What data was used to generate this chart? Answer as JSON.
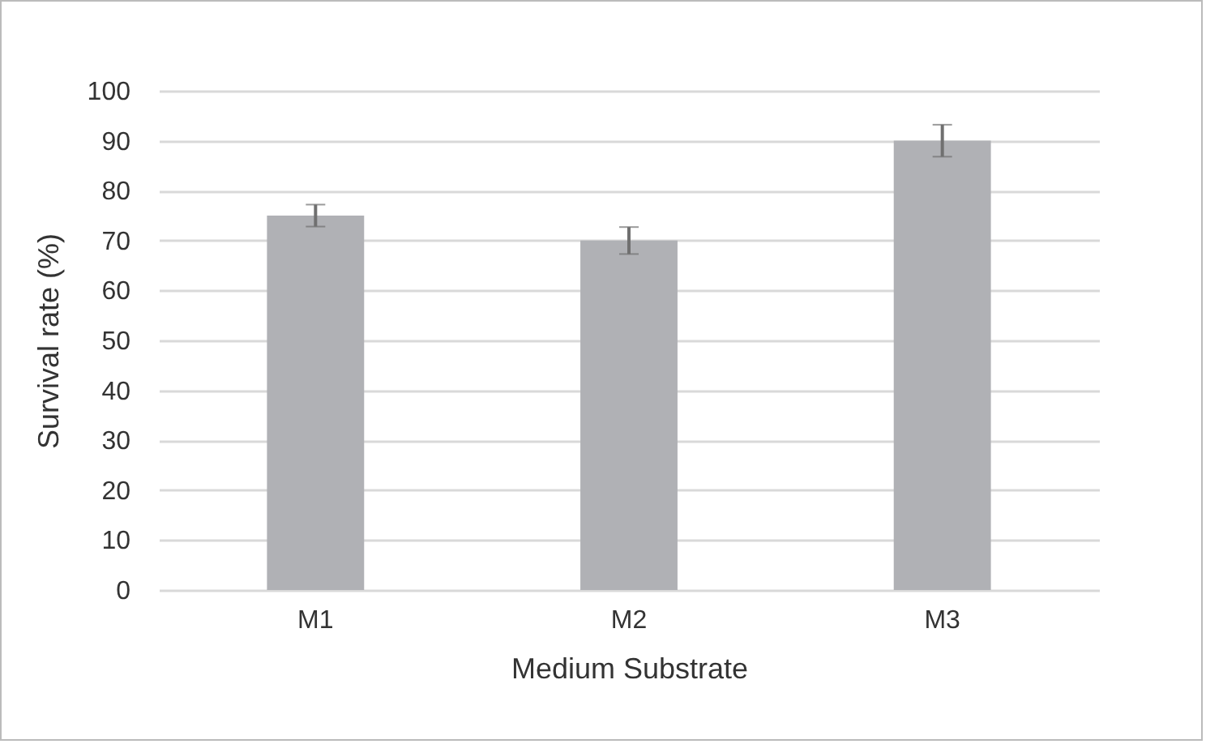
{
  "chart_data": {
    "type": "bar",
    "xlabel": "Medium Substrate",
    "ylabel": "Survival rate (%)",
    "categories": [
      "M1",
      "M2",
      "M3"
    ],
    "values": [
      75,
      70,
      90
    ],
    "errors": [
      2.2,
      2.7,
      3.2
    ],
    "color": "#b0b1b5",
    "ylim": [
      0,
      100
    ],
    "yticks": [
      0,
      10,
      20,
      30,
      40,
      50,
      60,
      70,
      80,
      90,
      100
    ],
    "grid": "y"
  }
}
